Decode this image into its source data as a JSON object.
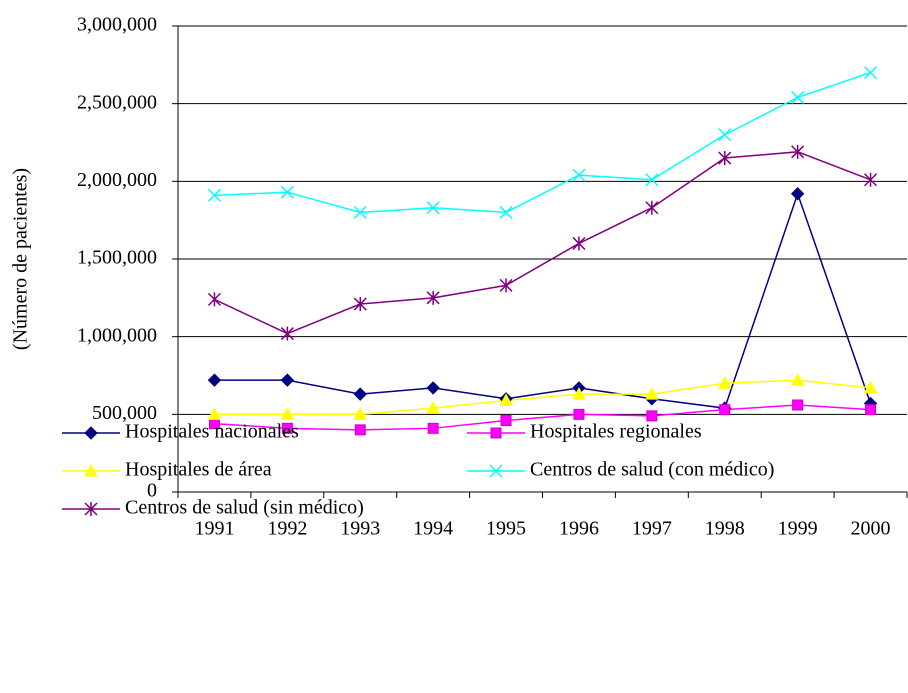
{
  "chart_data": {
    "type": "line",
    "y_label": "(Número de pacientes)",
    "categories": [
      "1991",
      "1992",
      "1993",
      "1994",
      "1995",
      "1996",
      "1997",
      "1998",
      "1999",
      "2000"
    ],
    "series": [
      {
        "name": "Hospitales nacionales",
        "color": "#000080",
        "marker": "diamond",
        "values": [
          720000,
          720000,
          630000,
          670000,
          600000,
          670000,
          600000,
          540000,
          1920000,
          570000
        ]
      },
      {
        "name": "Hospitales regionales",
        "color": "#FF00FF",
        "marker": "square",
        "values": [
          440000,
          410000,
          400000,
          410000,
          460000,
          500000,
          490000,
          530000,
          560000,
          530000
        ]
      },
      {
        "name": "Hospitales de área",
        "color": "#FFFF00",
        "marker": "triangle",
        "values": [
          500000,
          500000,
          500000,
          540000,
          590000,
          630000,
          630000,
          700000,
          720000,
          670000
        ]
      },
      {
        "name": "Centros de salud (con médico)",
        "color": "#00FFFF",
        "marker": "x",
        "values": [
          1910000,
          1930000,
          1800000,
          1830000,
          1800000,
          2040000,
          2010000,
          2300000,
          2540000,
          2700000
        ]
      },
      {
        "name": "Centros de salud (sin médico)",
        "color": "#800080",
        "marker": "asterisk",
        "values": [
          1240000,
          1020000,
          1210000,
          1250000,
          1330000,
          1600000,
          1830000,
          2150000,
          2190000,
          2010000
        ]
      }
    ],
    "ylim": [
      0,
      3000000
    ],
    "yticks": [
      0,
      {
        "value": 500000,
        "label": "500,000"
      },
      {
        "value": 1000000,
        "label": "1,000,000"
      },
      {
        "value": 1500000,
        "label": "1,500,000"
      },
      {
        "value": 2000000,
        "label": "2,000,000"
      },
      {
        "value": 2500000,
        "label": "2,500,000"
      },
      {
        "value": 3000000,
        "label": "3,000,000"
      }
    ],
    "grid": true
  }
}
